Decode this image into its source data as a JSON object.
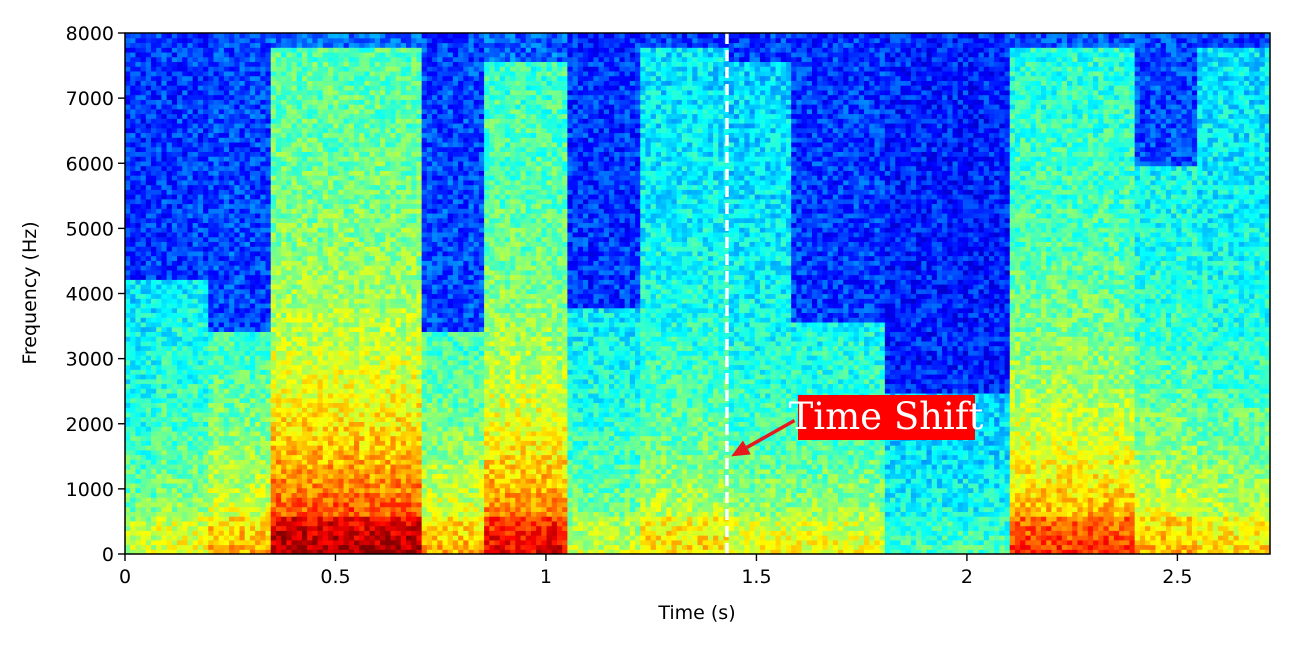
{
  "chart_data": {
    "type": "heatmap",
    "title": "",
    "xlabel": "Time (s)",
    "ylabel": "Frequency (Hz)",
    "xlim": [
      0,
      2.72
    ],
    "ylim": [
      0,
      8000
    ],
    "x_ticks": [
      0,
      0.5,
      1,
      1.5,
      2,
      2.5
    ],
    "x_tick_labels": [
      "0",
      "0.5",
      "1",
      "1.5",
      "2",
      "2.5"
    ],
    "y_ticks": [
      0,
      1000,
      2000,
      3000,
      4000,
      5000,
      6000,
      7000,
      8000
    ],
    "y_tick_labels": [
      "0",
      "1000",
      "2000",
      "3000",
      "4000",
      "5000",
      "6000",
      "7000",
      "8000"
    ],
    "colormap": "jet",
    "grid": false,
    "vertical_marker": {
      "x": 1.43,
      "style": "dashed",
      "color": "#ffffff"
    },
    "annotation": {
      "text": "Time Shift",
      "background": "#ff0000",
      "text_color": "#ffffff",
      "arrow_color": "#e8191e",
      "text_anchor_data": {
        "x": 1.6,
        "y": 2050
      },
      "arrow_target_data": {
        "x": 1.44,
        "y": 1500
      }
    },
    "energy_segments": [
      {
        "t_start": 0.0,
        "t_end": 0.08,
        "level": 0.45,
        "max_freq": 4200
      },
      {
        "t_start": 0.08,
        "t_end": 0.2,
        "level": 0.5,
        "max_freq": 4200
      },
      {
        "t_start": 0.2,
        "t_end": 0.35,
        "level": 0.6,
        "max_freq": 3400
      },
      {
        "t_start": 0.35,
        "t_end": 0.7,
        "level": 0.9,
        "max_freq": 7800
      },
      {
        "t_start": 0.7,
        "t_end": 0.85,
        "level": 0.6,
        "max_freq": 3400
      },
      {
        "t_start": 0.85,
        "t_end": 1.05,
        "level": 0.82,
        "max_freq": 7600
      },
      {
        "t_start": 1.05,
        "t_end": 1.22,
        "level": 0.45,
        "max_freq": 3800
      },
      {
        "t_start": 1.22,
        "t_end": 1.43,
        "level": 0.55,
        "max_freq": 7800
      },
      {
        "t_start": 1.43,
        "t_end": 1.58,
        "level": 0.5,
        "max_freq": 7600
      },
      {
        "t_start": 1.58,
        "t_end": 1.8,
        "level": 0.5,
        "max_freq": 3600
      },
      {
        "t_start": 1.8,
        "t_end": 2.1,
        "level": 0.3,
        "max_freq": 2500
      },
      {
        "t_start": 2.1,
        "t_end": 2.4,
        "level": 0.75,
        "max_freq": 7800
      },
      {
        "t_start": 2.4,
        "t_end": 2.55,
        "level": 0.6,
        "max_freq": 6000
      },
      {
        "t_start": 2.55,
        "t_end": 2.72,
        "level": 0.55,
        "max_freq": 7800
      }
    ]
  }
}
